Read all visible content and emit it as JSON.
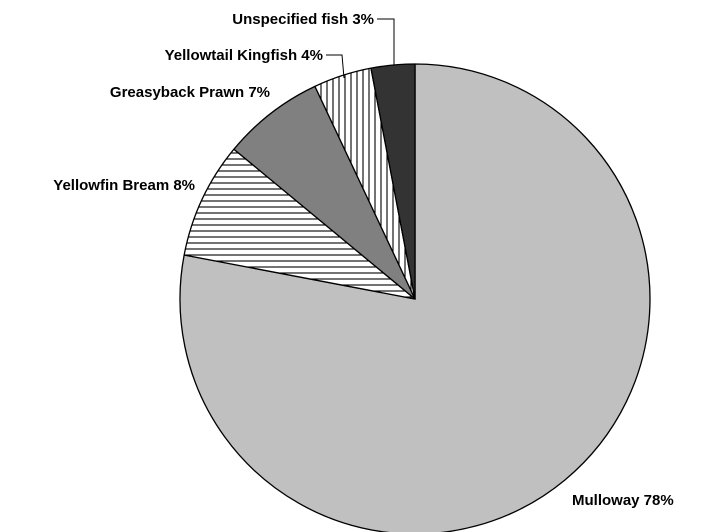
{
  "chart_data": {
    "type": "pie",
    "title": "",
    "start": "12 o'clock, clockwise",
    "legend": "none",
    "slices": [
      {
        "label": "Mulloway",
        "value": 78,
        "display": "78%",
        "fill": "solid",
        "color": "#c0c0c0"
      },
      {
        "label": "Yellowfin Bream",
        "value": 8,
        "display": "8%",
        "fill": "horizontal-stripes",
        "color": "#ffffff"
      },
      {
        "label": "Greasyback Prawn",
        "value": 7,
        "display": "7%",
        "fill": "solid",
        "color": "#808080"
      },
      {
        "label": "Yellowtail Kingfish",
        "value": 4,
        "display": "4%",
        "fill": "vertical-stripes",
        "color": "#ffffff"
      },
      {
        "label": "Unspecified fish",
        "value": 3,
        "display": "3%",
        "fill": "solid",
        "color": "#333333"
      }
    ]
  }
}
